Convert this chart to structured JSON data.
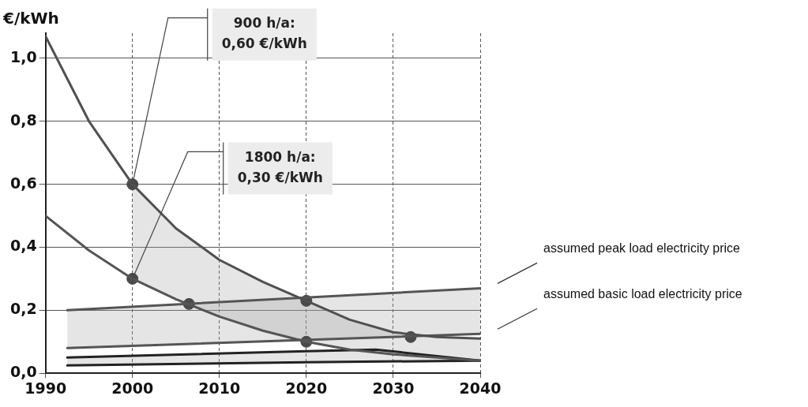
{
  "chart_data": {
    "type": "line",
    "ylabel": "€/kWh",
    "xlim": [
      1990,
      2040
    ],
    "xticks": [
      1990,
      2000,
      2010,
      2020,
      2030,
      2040
    ],
    "ylim": [
      0,
      1.08
    ],
    "yticks": [
      {
        "value": 0,
        "label": "0,0"
      },
      {
        "value": 0.2,
        "label": "0,2"
      },
      {
        "value": 0.4,
        "label": "0,4"
      },
      {
        "value": 0.6,
        "label": "0,6"
      },
      {
        "value": 0.8,
        "label": "0,8"
      },
      {
        "value": 1.0,
        "label": "1,0"
      }
    ],
    "grid": true,
    "legend": false,
    "marker": "none",
    "series": [
      {
        "color": "#505050",
        "x": [
          1990,
          1995,
          2000,
          2005,
          2010,
          2015,
          2020,
          2025,
          2030,
          2035,
          2040
        ],
        "values": [
          1.07,
          0.8,
          0.6,
          0.46,
          0.36,
          0.29,
          0.23,
          0.17,
          0.13,
          0.115,
          0.11
        ],
        "lower": [
          null,
          null,
          0.3,
          0.235,
          0.18,
          0.135,
          0.1,
          0.075,
          0.06,
          0.05,
          0.04
        ],
        "upper": [
          null,
          null,
          0.6,
          0.46,
          0.36,
          0.29,
          0.23,
          0.17,
          0.13,
          0.115,
          0.11
        ]
      },
      {
        "color": "#555555",
        "x": [
          1990,
          1995,
          2000,
          2005,
          2010,
          2015,
          2020,
          2025,
          2030,
          2035,
          2040
        ],
        "values": [
          0.5,
          0.39,
          0.3,
          0.235,
          0.18,
          0.135,
          0.1,
          0.075,
          0.06,
          0.05,
          0.04
        ]
      },
      {
        "name": "assumed peak load electricity price",
        "color": "#555555",
        "x": [
          1992.5,
          2040
        ],
        "values": [
          0.2,
          0.27
        ],
        "lower": [
          0.08,
          0.125
        ],
        "upper": [
          0.2,
          0.27
        ]
      },
      {
        "name": "assumed basic load electricity price",
        "color": "#555555",
        "x": [
          1992.5,
          2040
        ],
        "values": [
          0.08,
          0.125
        ]
      },
      {
        "color": "#222222",
        "x": [
          1992.5,
          2020,
          2028,
          2040
        ],
        "values": [
          0.05,
          0.07,
          0.075,
          0.04
        ],
        "lower": [
          0.025,
          0.035,
          0.037,
          0.04
        ],
        "upper": [
          0.05,
          0.07,
          0.075,
          0.04
        ]
      },
      {
        "color": "#222222",
        "x": [
          1992.5,
          2020,
          2040
        ],
        "values": [
          0.025,
          0.035,
          0.04
        ]
      },
      {
        "type": "scatter",
        "marker": "circle",
        "color": "#4a4a4a",
        "x": [
          2000,
          2000,
          2006.5,
          2020,
          2020,
          2032
        ],
        "values": [
          0.6,
          0.3,
          0.22,
          0.23,
          0.1,
          0.115
        ]
      }
    ],
    "annotations": [
      {
        "text": "900 h/a:\n0,60 €/kWh",
        "x": 2000,
        "y": 0.6
      },
      {
        "text": "1800 h/a:\n0,30 €/kWh",
        "x": 2000,
        "y": 0.3
      }
    ]
  }
}
